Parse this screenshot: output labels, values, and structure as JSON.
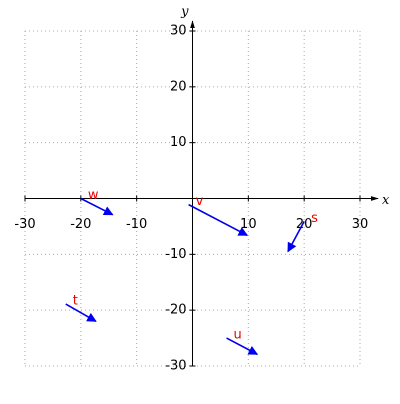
{
  "chart_data": {
    "type": "vector",
    "x_label": "x",
    "y_label": "y",
    "xlim": [
      -30,
      30
    ],
    "ylim": [
      -30,
      30
    ],
    "xticks": [
      -30,
      -20,
      -10,
      10,
      20,
      30
    ],
    "yticks": [
      -30,
      -20,
      -10,
      10,
      20,
      30
    ],
    "grid": true,
    "color": "#0000ee",
    "label_color": "#ee0000",
    "series": [
      {
        "name": "w",
        "x": -20,
        "y": 0,
        "dx": 5.7,
        "dy": -2.9
      },
      {
        "name": "v",
        "x": -0.7,
        "y": -1.1,
        "dx": 10.5,
        "dy": -5.5
      },
      {
        "name": "s",
        "x": 20,
        "y": -4.1,
        "dx": -2.9,
        "dy": -5.4
      },
      {
        "name": "t",
        "x": -22.7,
        "y": -18.9,
        "dx": 5.4,
        "dy": -3.1
      },
      {
        "name": "u",
        "x": 6.1,
        "y": -25,
        "dx": 5.5,
        "dy": -2.9
      }
    ]
  }
}
